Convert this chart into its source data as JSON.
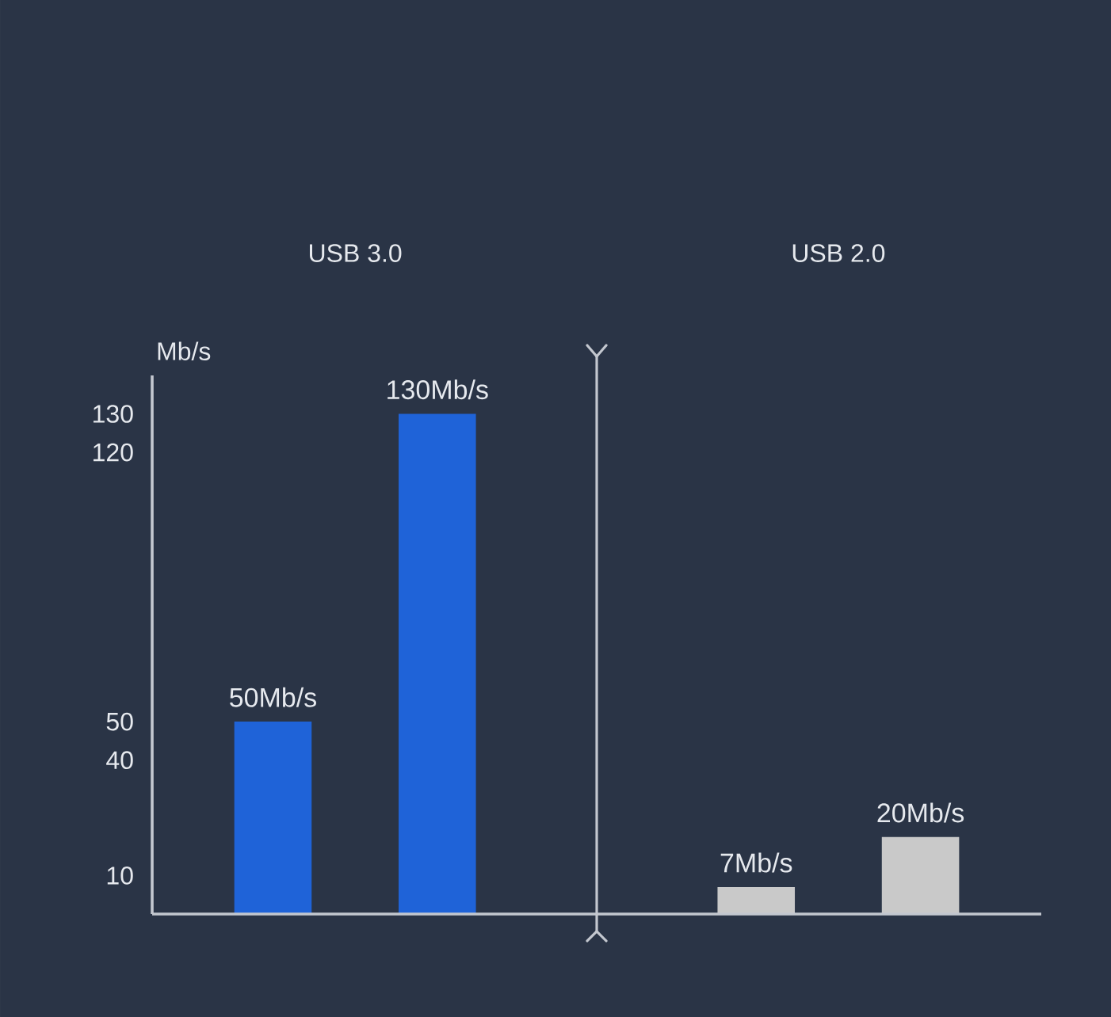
{
  "chart_data": {
    "type": "bar",
    "categories": [
      "USB 3.0",
      "USB 2.0"
    ],
    "ylabel": "Mb/s",
    "ylim": [
      0,
      140
    ],
    "yticks": [
      10,
      40,
      50,
      120,
      130
    ],
    "series": [
      {
        "colors": [
          "#1f63d8",
          "#c9c9c9"
        ],
        "values": [
          50,
          7
        ],
        "value_labels": [
          "50Mb/s",
          "7Mb/s"
        ]
      },
      {
        "colors": [
          "#1f63d8",
          "#c9c9c9"
        ],
        "values": [
          130,
          20
        ],
        "value_labels": [
          "130Mb/s",
          "20Mb/s"
        ]
      }
    ]
  }
}
